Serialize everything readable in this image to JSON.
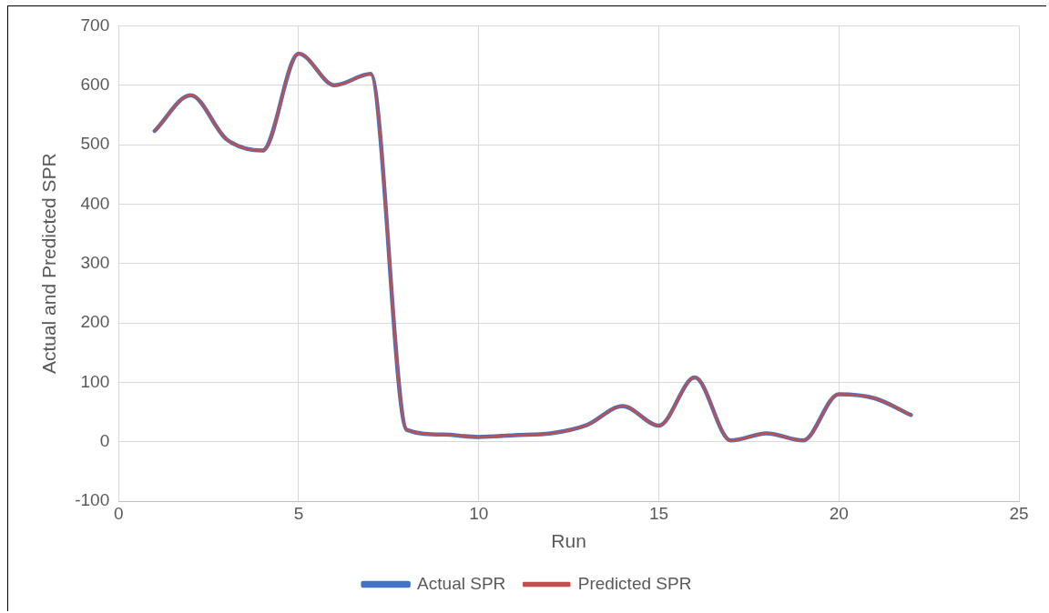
{
  "chart_data": {
    "type": "line",
    "xlabel": "Run",
    "ylabel": "Actual and Predicted SPR",
    "x": [
      1,
      2,
      3,
      4,
      5,
      6,
      7,
      8,
      9,
      10,
      11,
      12,
      13,
      14,
      15,
      16,
      17,
      18,
      19,
      20,
      21,
      22
    ],
    "series": [
      {
        "name": "Actual SPR",
        "color": "#4472c4",
        "values": [
          523,
          583,
          509,
          490,
          653,
          600,
          619,
          20,
          12,
          8,
          11,
          14,
          28,
          60,
          27,
          108,
          2,
          14,
          2,
          80,
          73,
          45
        ]
      },
      {
        "name": "Predicted SPR",
        "color": "#c0504d",
        "values": [
          523,
          583,
          509,
          490,
          653,
          600,
          619,
          20,
          12,
          8,
          11,
          14,
          28,
          60,
          27,
          108,
          2,
          14,
          2,
          80,
          73,
          45
        ]
      }
    ],
    "xlim": [
      0,
      25
    ],
    "xticks": [
      0,
      5,
      10,
      15,
      20,
      25
    ],
    "ylim": [
      -100,
      700
    ],
    "yticks": [
      -100,
      0,
      100,
      200,
      300,
      400,
      500,
      600,
      700
    ],
    "grid": true,
    "legend": "bottom",
    "marker": "none",
    "line_style": "solid"
  }
}
